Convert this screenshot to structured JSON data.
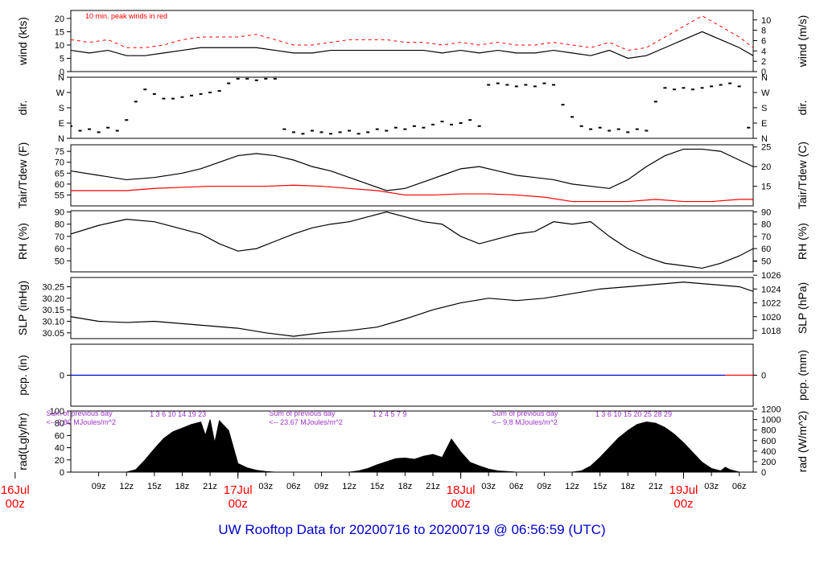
{
  "footer_title": "UW Rooftop Data for 20200716  to  20200719 @ 06:56:59  (UTC)",
  "colors": {
    "series": "#000000",
    "peak": "#ff0000",
    "precip": "#0000cc",
    "note": "#9933cc",
    "date": "#ff0000",
    "footer": "#0000cc"
  },
  "x_axis": {
    "start_hour": 6,
    "end_hour": 79.5,
    "tick_hours": [
      9,
      12,
      15,
      18,
      21,
      24,
      27,
      30,
      33,
      36,
      39,
      42,
      45,
      48,
      51,
      54,
      57,
      60,
      63,
      66,
      69,
      72,
      75,
      78
    ],
    "tick_labels": [
      "09z",
      "12z",
      "15z",
      "18z",
      "21z",
      "",
      "03z",
      "06z",
      "09z",
      "12z",
      "15z",
      "18z",
      "21z",
      "",
      "03z",
      "06z",
      "09z",
      "12z",
      "15z",
      "18z",
      "21z",
      "",
      "03z",
      "06z"
    ],
    "dates": [
      {
        "hour": 0,
        "line1": "16Jul",
        "line2": "00z"
      },
      {
        "hour": 24,
        "line1": "17Jul",
        "line2": "00z"
      },
      {
        "hour": 48,
        "line1": "18Jul",
        "line2": "00z"
      },
      {
        "hour": 72,
        "line1": "19Jul",
        "line2": "00z"
      }
    ]
  },
  "chart_data": [
    {
      "type": "line",
      "key": "wind",
      "ylabel_left": "wind (kts)",
      "ylabel_right": "wind (m/s)",
      "ylim": [
        0,
        23
      ],
      "left_ticks": [
        0,
        5,
        10,
        15,
        20
      ],
      "left_tick_labels": [
        "0",
        "5",
        "10",
        "15",
        "20"
      ],
      "right_ticks": [
        0,
        2,
        4,
        6,
        8,
        10
      ],
      "right_tick_labels": [
        "0",
        "2",
        "4",
        "6",
        "8",
        "10"
      ],
      "right_factor": 1.944,
      "annotation": "10 min. peak winds in red",
      "series": [
        {
          "color": "#000000",
          "x": [
            6,
            8,
            10,
            12,
            14,
            16,
            18,
            20,
            22,
            24,
            26,
            28,
            30,
            32,
            34,
            36,
            38,
            40,
            42,
            44,
            46,
            48,
            50,
            52,
            54,
            56,
            58,
            60,
            62,
            64,
            66,
            68,
            70,
            72,
            74,
            76,
            78,
            79.5
          ],
          "y": [
            8,
            7,
            8,
            6,
            6,
            7,
            8,
            9,
            9,
            9,
            9,
            8,
            7,
            7,
            8,
            8,
            8,
            8,
            8,
            8,
            7,
            8,
            7,
            8,
            7,
            7,
            8,
            7,
            6,
            8,
            5,
            6,
            9,
            12,
            15,
            12,
            9,
            6
          ]
        },
        {
          "color": "#ff0000",
          "x": [
            6,
            8,
            10,
            12,
            14,
            16,
            18,
            20,
            22,
            24,
            26,
            28,
            30,
            32,
            34,
            36,
            38,
            40,
            42,
            44,
            46,
            48,
            50,
            52,
            54,
            56,
            58,
            60,
            62,
            64,
            66,
            68,
            70,
            72,
            74,
            76,
            78,
            79.5
          ],
          "y": [
            12,
            11,
            12,
            9,
            9,
            10,
            12,
            13,
            13,
            13,
            14,
            12,
            10,
            10,
            11,
            12,
            12,
            12,
            11,
            11,
            10,
            11,
            10,
            11,
            10,
            10,
            11,
            10,
            9,
            11,
            8,
            9,
            13,
            17,
            21,
            17,
            13,
            9
          ]
        }
      ]
    },
    {
      "type": "scatter",
      "key": "dir",
      "ylabel_left": "dir.",
      "ylabel_right": "dir.",
      "ylim": [
        0,
        4
      ],
      "left_ticks": [
        0,
        1,
        2,
        3,
        4
      ],
      "left_tick_labels": [
        "N",
        "E",
        "S",
        "W",
        "N"
      ],
      "right_ticks": [
        0,
        1,
        2,
        3,
        4
      ],
      "right_tick_labels": [
        "N",
        "E",
        "S",
        "W",
        "N"
      ],
      "series": [
        {
          "color": "#000000",
          "x": [
            6,
            7,
            8,
            9,
            10,
            11,
            12,
            13,
            14,
            15,
            16,
            17,
            18,
            19,
            20,
            21,
            22,
            23,
            24,
            25,
            26,
            27,
            28,
            29,
            30,
            31,
            32,
            33,
            34,
            35,
            36,
            37,
            38,
            39,
            40,
            41,
            42,
            43,
            44,
            45,
            46,
            47,
            48,
            49,
            50,
            51,
            52,
            53,
            54,
            55,
            56,
            57,
            58,
            59,
            60,
            61,
            62,
            63,
            64,
            65,
            66,
            67,
            68,
            69,
            70,
            71,
            72,
            73,
            74,
            75,
            76,
            77,
            78,
            79
          ],
          "y": [
            0.8,
            0.5,
            0.6,
            0.4,
            0.7,
            0.5,
            1.2,
            2.4,
            3.2,
            2.9,
            2.6,
            2.6,
            2.7,
            2.8,
            2.9,
            3.0,
            3.1,
            3.6,
            3.9,
            3.9,
            3.8,
            3.9,
            3.9,
            0.6,
            0.4,
            0.3,
            0.5,
            0.4,
            0.3,
            0.4,
            0.5,
            0.3,
            0.4,
            0.6,
            0.5,
            0.7,
            0.6,
            0.8,
            0.7,
            0.9,
            1.1,
            0.9,
            1.0,
            1.2,
            0.8,
            3.5,
            3.6,
            3.5,
            3.4,
            3.5,
            3.4,
            3.6,
            3.5,
            2.2,
            1.4,
            0.8,
            0.6,
            0.7,
            0.5,
            0.6,
            0.4,
            0.6,
            0.5,
            2.4,
            3.3,
            3.2,
            3.3,
            3.2,
            3.3,
            3.4,
            3.5,
            3.6,
            3.4,
            0.7
          ]
        }
      ]
    },
    {
      "type": "line",
      "key": "temp",
      "ylabel_left": "Tair/Tdew (F)",
      "ylabel_right": "Tair/Tdew (C)",
      "ylim": [
        50,
        78
      ],
      "left_ticks": [
        55,
        60,
        65,
        70,
        75
      ],
      "left_tick_labels": [
        "55",
        "60",
        "65",
        "70",
        "75"
      ],
      "right_ticks": [
        59,
        68,
        77
      ],
      "right_tick_labels": [
        "15",
        "20",
        "25"
      ],
      "series": [
        {
          "color": "#000000",
          "x": [
            6,
            9,
            12,
            15,
            18,
            20,
            22,
            24,
            26,
            28,
            30,
            32,
            34,
            36,
            38,
            40,
            42,
            44,
            46,
            48,
            50,
            52,
            54,
            56,
            58,
            60,
            62,
            64,
            66,
            68,
            70,
            72,
            74,
            76,
            78,
            79.5
          ],
          "y": [
            66,
            64,
            62,
            63,
            65,
            67,
            70,
            73,
            74,
            73,
            71,
            68,
            66,
            63,
            60,
            57,
            58,
            61,
            64,
            67,
            68,
            66,
            64,
            63,
            62,
            60,
            59,
            58,
            62,
            68,
            73,
            76,
            76,
            75,
            71,
            68
          ]
        },
        {
          "color": "#ff0000",
          "x": [
            6,
            9,
            12,
            15,
            18,
            21,
            24,
            27,
            30,
            33,
            36,
            39,
            42,
            45,
            48,
            51,
            54,
            57,
            60,
            63,
            66,
            69,
            72,
            75,
            78,
            79.5
          ],
          "y": [
            57,
            57,
            57,
            58,
            58.5,
            59,
            59,
            59,
            59.5,
            59,
            58,
            57,
            55,
            55,
            55.5,
            55.5,
            55,
            54,
            52,
            52,
            52,
            53,
            52,
            52,
            53,
            53
          ]
        }
      ]
    },
    {
      "type": "line",
      "key": "rh",
      "ylabel_left": "RH (%)",
      "ylabel_right": "RH (%)",
      "ylim": [
        41,
        91
      ],
      "left_ticks": [
        50,
        60,
        70,
        80,
        90
      ],
      "left_tick_labels": [
        "50",
        "60",
        "70",
        "80",
        "90"
      ],
      "right_ticks": [
        50,
        60,
        70,
        80,
        90
      ],
      "right_tick_labels": [
        "50",
        "60",
        "70",
        "80",
        "90"
      ],
      "series": [
        {
          "color": "#000000",
          "x": [
            6,
            9,
            12,
            15,
            18,
            20,
            22,
            24,
            26,
            28,
            30,
            32,
            34,
            36,
            38,
            40,
            42,
            44,
            46,
            48,
            50,
            52,
            54,
            56,
            58,
            60,
            62,
            64,
            66,
            68,
            70,
            72,
            74,
            76,
            78,
            79.5
          ],
          "y": [
            72,
            79,
            84,
            82,
            76,
            72,
            64,
            58,
            60,
            66,
            72,
            77,
            80,
            82,
            86,
            90,
            86,
            82,
            80,
            70,
            64,
            68,
            72,
            74,
            82,
            80,
            82,
            70,
            60,
            53,
            48,
            46,
            44,
            48,
            54,
            60
          ]
        }
      ]
    },
    {
      "type": "line",
      "key": "slp",
      "ylabel_left": "SLP (inHg)",
      "ylabel_right": "SLP (hPa)",
      "ylim": [
        30.025,
        30.29
      ],
      "left_ticks": [
        30.05,
        30.1,
        30.15,
        30.2,
        30.25
      ],
      "left_tick_labels": [
        "30.05",
        "30.10",
        "30.15",
        "30.20",
        "30.25"
      ],
      "right_ticks": [
        30.06,
        30.12,
        30.18,
        30.24,
        30.3,
        30.36
      ],
      "right_tick_labels": [
        "1018",
        "1020",
        "1022",
        "1024",
        "1026"
      ],
      "series": [
        {
          "color": "#000000",
          "x": [
            6,
            9,
            12,
            15,
            18,
            21,
            24,
            27,
            30,
            33,
            36,
            39,
            42,
            45,
            48,
            51,
            54,
            57,
            60,
            63,
            66,
            69,
            72,
            75,
            78,
            79.5
          ],
          "y": [
            30.12,
            30.1,
            30.095,
            30.1,
            30.09,
            30.08,
            30.07,
            30.05,
            30.035,
            30.05,
            30.06,
            30.075,
            30.11,
            30.15,
            30.18,
            30.2,
            30.19,
            30.2,
            30.22,
            30.24,
            30.25,
            30.26,
            30.27,
            30.26,
            30.25,
            30.23
          ]
        }
      ]
    },
    {
      "type": "line",
      "key": "pcp",
      "ylabel_left": "pcp. (in)",
      "ylabel_right": "pcp. (mm)",
      "ylim": [
        -0.5,
        0.5
      ],
      "left_ticks": [
        0
      ],
      "left_tick_labels": [
        "0"
      ],
      "right_ticks": [
        0
      ],
      "right_tick_labels": [
        "0"
      ],
      "series": [
        {
          "color": "#0000cc",
          "x": [
            6,
            76.5
          ],
          "y": [
            0,
            0
          ]
        },
        {
          "color": "#ff0000",
          "x": [
            76.5,
            79.5
          ],
          "y": [
            0,
            0
          ]
        }
      ]
    },
    {
      "type": "area",
      "key": "rad",
      "ylabel_left": "rad(Lgly/hr)",
      "ylabel_right": "rad (W/m^2)",
      "ylim": [
        0,
        100
      ],
      "left_ticks": [
        0,
        20,
        40,
        60,
        80,
        100
      ],
      "left_tick_labels": [
        "0",
        "20",
        "40",
        "60",
        "80",
        "100"
      ],
      "right_ticks": [
        0,
        17.2,
        34.4,
        51.6,
        68.8,
        86,
        103.2
      ],
      "right_tick_labels": [
        "0",
        "200",
        "400",
        "600",
        "800",
        "1000",
        "1200"
      ],
      "series": [
        {
          "color": "#000000",
          "x": [
            12,
            13,
            14,
            15,
            16,
            17,
            18,
            19,
            20,
            20.5,
            21,
            21.5,
            22,
            23,
            24,
            25,
            26,
            27,
            28,
            30,
            36,
            37,
            38,
            39,
            40,
            41,
            42,
            43,
            44,
            45,
            46,
            47,
            48,
            49,
            50,
            51,
            52,
            54,
            60,
            61,
            62,
            63,
            64,
            65,
            66,
            67,
            68,
            69,
            70,
            71,
            72,
            73,
            74,
            75,
            76,
            76.5,
            77,
            78
          ],
          "y": [
            0,
            4,
            20,
            38,
            55,
            66,
            72,
            78,
            82,
            60,
            86,
            48,
            84,
            68,
            14,
            7,
            3,
            1,
            0,
            0,
            0,
            2,
            6,
            12,
            17,
            22,
            23,
            21,
            26,
            29,
            24,
            54,
            33,
            16,
            10,
            5,
            2,
            0,
            0,
            2,
            10,
            24,
            40,
            56,
            68,
            78,
            82,
            80,
            73,
            62,
            48,
            32,
            16,
            6,
            2,
            8,
            4,
            0
          ]
        }
      ],
      "notes": [
        {
          "day": 0,
          "line1": "Sum of previous day",
          "line2": "<-- 2.80 MJoules/m^2"
        },
        {
          "day": 1,
          "line1": "Sum of previous day",
          "line2": "<-- 23.67 MJoules/m^2"
        },
        {
          "day": 2,
          "line1": "Sum of previous day",
          "line2": "<-- 9.8 MJoules/m^2"
        }
      ],
      "top_labels": [
        {
          "day": 0,
          "text": "1   3    6    10    14    19    23"
        },
        {
          "day": 1,
          "text": "1     2        4    5      7     9"
        },
        {
          "day": 2,
          "text": "1   3    6   10   15   20    25    28       29"
        }
      ]
    }
  ]
}
